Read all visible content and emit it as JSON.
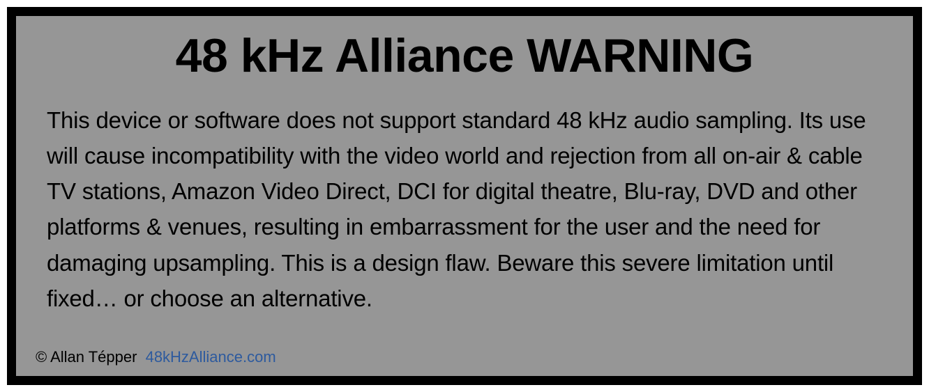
{
  "warning": {
    "title": "48 kHz Alliance WARNING",
    "body": "This device or software does not support standard 48 kHz audio sampling. Its use will cause incompatibility with the video world and rejection from all on-air & cable TV stations, Amazon Video Direct, DCI for digital theatre, Blu-ray, DVD and other platforms & venues, resulting in embarrassment for the user and the need for damaging upsampling. This is a design flaw. Beware this severe limitation until fixed… or choose an alternative.",
    "copyright": "© Allan Tépper",
    "link_text": "48kHzAlliance.com",
    "colors": {
      "background": "#969696",
      "border": "#000000",
      "text": "#000000",
      "link": "#2d5a9e"
    },
    "typography": {
      "title_fontsize": 68,
      "title_weight": "bold",
      "body_fontsize": 33,
      "footer_fontsize": 22,
      "font_family": "Helvetica, Arial, sans-serif"
    },
    "layout": {
      "outer_width": 1332,
      "outer_height": 563,
      "border_width": 13
    }
  }
}
